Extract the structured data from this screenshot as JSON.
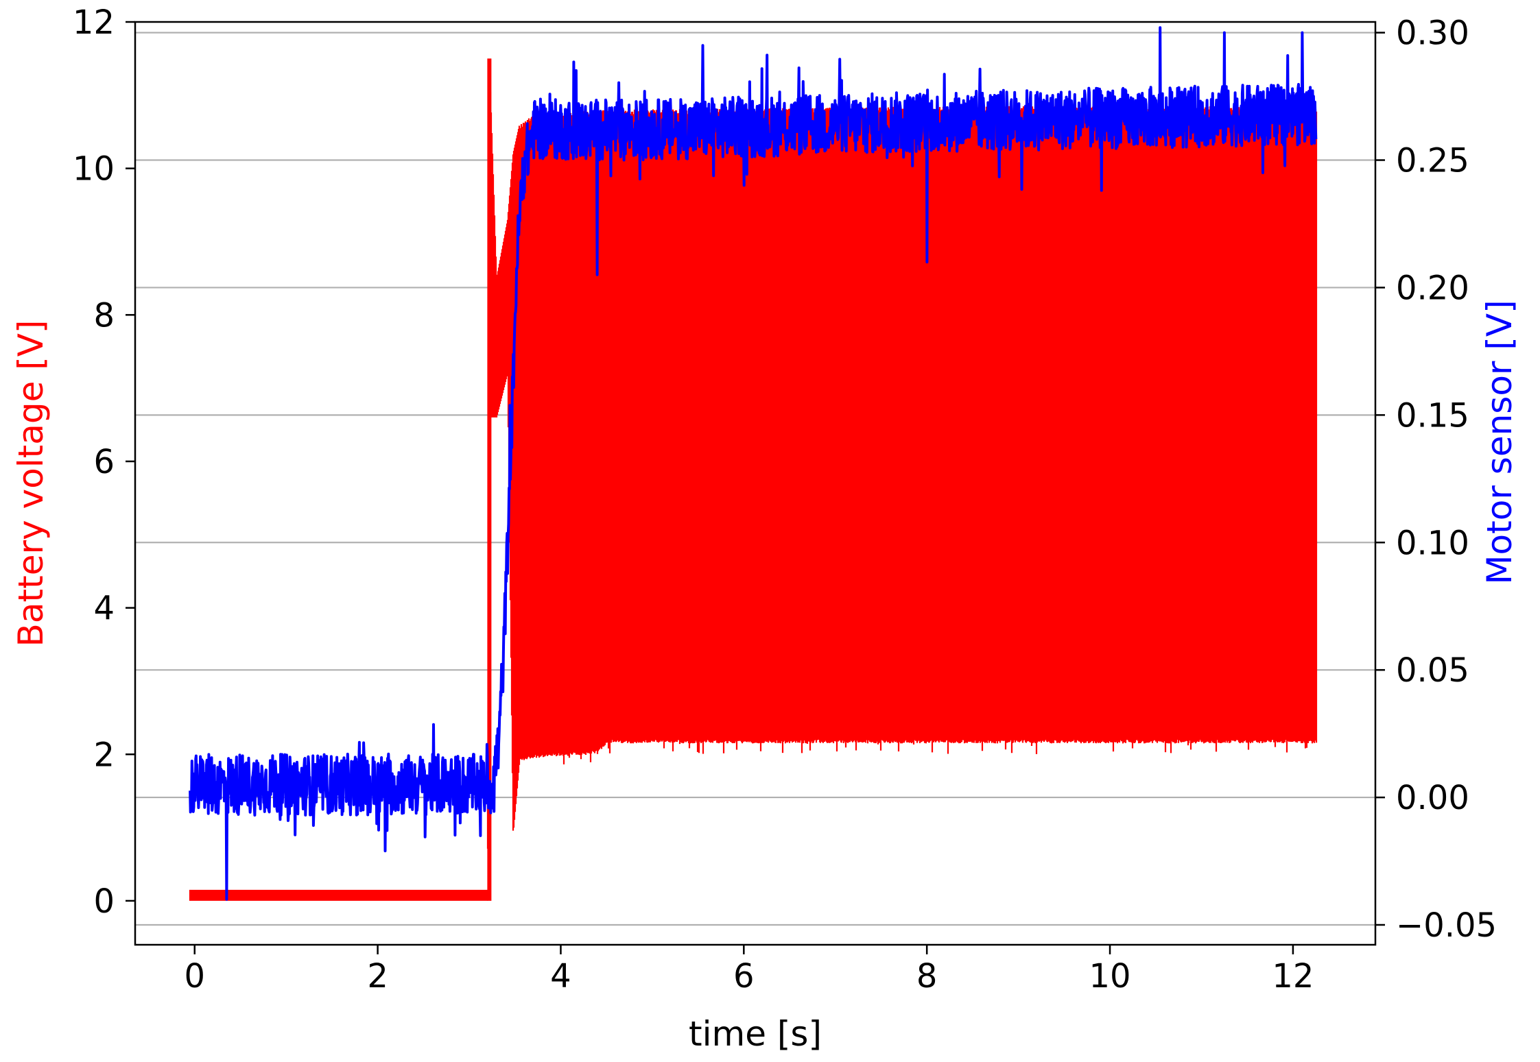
{
  "chart_data": {
    "type": "line",
    "xlabel": "time [s]",
    "ylabel_left": "Battery voltage [V]",
    "ylabel_right": "Motor sensor [V]",
    "xlim": [
      -0.65,
      12.9
    ],
    "ylim_left": [
      -0.6,
      12.0
    ],
    "ylim_right": [
      -0.0578,
      0.3042
    ],
    "x_ticks": [
      {
        "value": 0,
        "label": "0"
      },
      {
        "value": 2,
        "label": "2"
      },
      {
        "value": 4,
        "label": "4"
      },
      {
        "value": 6,
        "label": "6"
      },
      {
        "value": 8,
        "label": "8"
      },
      {
        "value": 10,
        "label": "10"
      },
      {
        "value": 12,
        "label": "12"
      }
    ],
    "y_left_ticks": [
      {
        "value": 0,
        "label": "0"
      },
      {
        "value": 2,
        "label": "2"
      },
      {
        "value": 4,
        "label": "4"
      },
      {
        "value": 6,
        "label": "6"
      },
      {
        "value": 8,
        "label": "8"
      },
      {
        "value": 10,
        "label": "10"
      },
      {
        "value": 12,
        "label": "12"
      }
    ],
    "y_right_ticks": [
      {
        "value": -0.05,
        "label": "−0.05"
      },
      {
        "value": 0.0,
        "label": "0.00"
      },
      {
        "value": 0.05,
        "label": "0.05"
      },
      {
        "value": 0.1,
        "label": "0.10"
      },
      {
        "value": 0.15,
        "label": "0.15"
      },
      {
        "value": 0.2,
        "label": "0.20"
      },
      {
        "value": 0.25,
        "label": "0.25"
      },
      {
        "value": 0.3,
        "label": "0.30"
      }
    ],
    "grid": "horizontal (right axis)",
    "series": [
      {
        "axis": "left",
        "color": "#ff0000",
        "noise": {
          "pre_switch": [
            0.0,
            0.15
          ],
          "band_start": 3.55
        },
        "envelope": [
          {
            "x": -0.05,
            "min": 0.0,
            "max": 0.15
          },
          {
            "x": 3.2,
            "min": 0.0,
            "max": 0.15
          },
          {
            "x": 3.22,
            "min": 6.6,
            "max": 11.5
          },
          {
            "x": 3.3,
            "min": 6.6,
            "max": 8.5
          },
          {
            "x": 3.42,
            "min": 7.2,
            "max": 9.3
          },
          {
            "x": 3.48,
            "min": 0.9,
            "max": 10.2
          },
          {
            "x": 3.55,
            "min": 1.9,
            "max": 10.6
          },
          {
            "x": 3.7,
            "min": 1.95,
            "max": 10.75
          },
          {
            "x": 4.4,
            "min": 2.0,
            "max": 10.8
          },
          {
            "x": 4.5,
            "min": 2.15,
            "max": 10.8
          },
          {
            "x": 8.0,
            "min": 2.15,
            "max": 10.85
          },
          {
            "x": 12.2,
            "min": 2.15,
            "max": 10.85
          },
          {
            "x": 12.25,
            "min": 2.15,
            "max": 10.85
          }
        ]
      },
      {
        "axis": "right",
        "color": "#0000ff",
        "mean": [
          {
            "x": -0.05,
            "y": 0.005
          },
          {
            "x": 3.25,
            "y": 0.005
          },
          {
            "x": 3.32,
            "y": 0.02
          },
          {
            "x": 3.38,
            "y": 0.06
          },
          {
            "x": 3.45,
            "y": 0.13
          },
          {
            "x": 3.52,
            "y": 0.21
          },
          {
            "x": 3.58,
            "y": 0.245
          },
          {
            "x": 3.7,
            "y": 0.262
          },
          {
            "x": 5.0,
            "y": 0.262
          },
          {
            "x": 8.0,
            "y": 0.265
          },
          {
            "x": 12.25,
            "y": 0.268
          }
        ],
        "noise_amplitude": 0.012,
        "spikes": [
          {
            "x": 0.35,
            "y": -0.04
          },
          {
            "x": 1.3,
            "y": -0.011
          },
          {
            "x": 1.85,
            "y": 0.016
          },
          {
            "x": 2.1,
            "y": -0.013
          },
          {
            "x": 2.9,
            "y": -0.01
          },
          {
            "x": 3.12,
            "y": -0.015
          },
          {
            "x": 4.4,
            "y": 0.205
          },
          {
            "x": 5.55,
            "y": 0.295
          },
          {
            "x": 8.0,
            "y": 0.21
          },
          {
            "x": 10.55,
            "y": 0.302
          },
          {
            "x": 11.25,
            "y": 0.3
          },
          {
            "x": 12.1,
            "y": 0.3
          }
        ]
      }
    ]
  }
}
